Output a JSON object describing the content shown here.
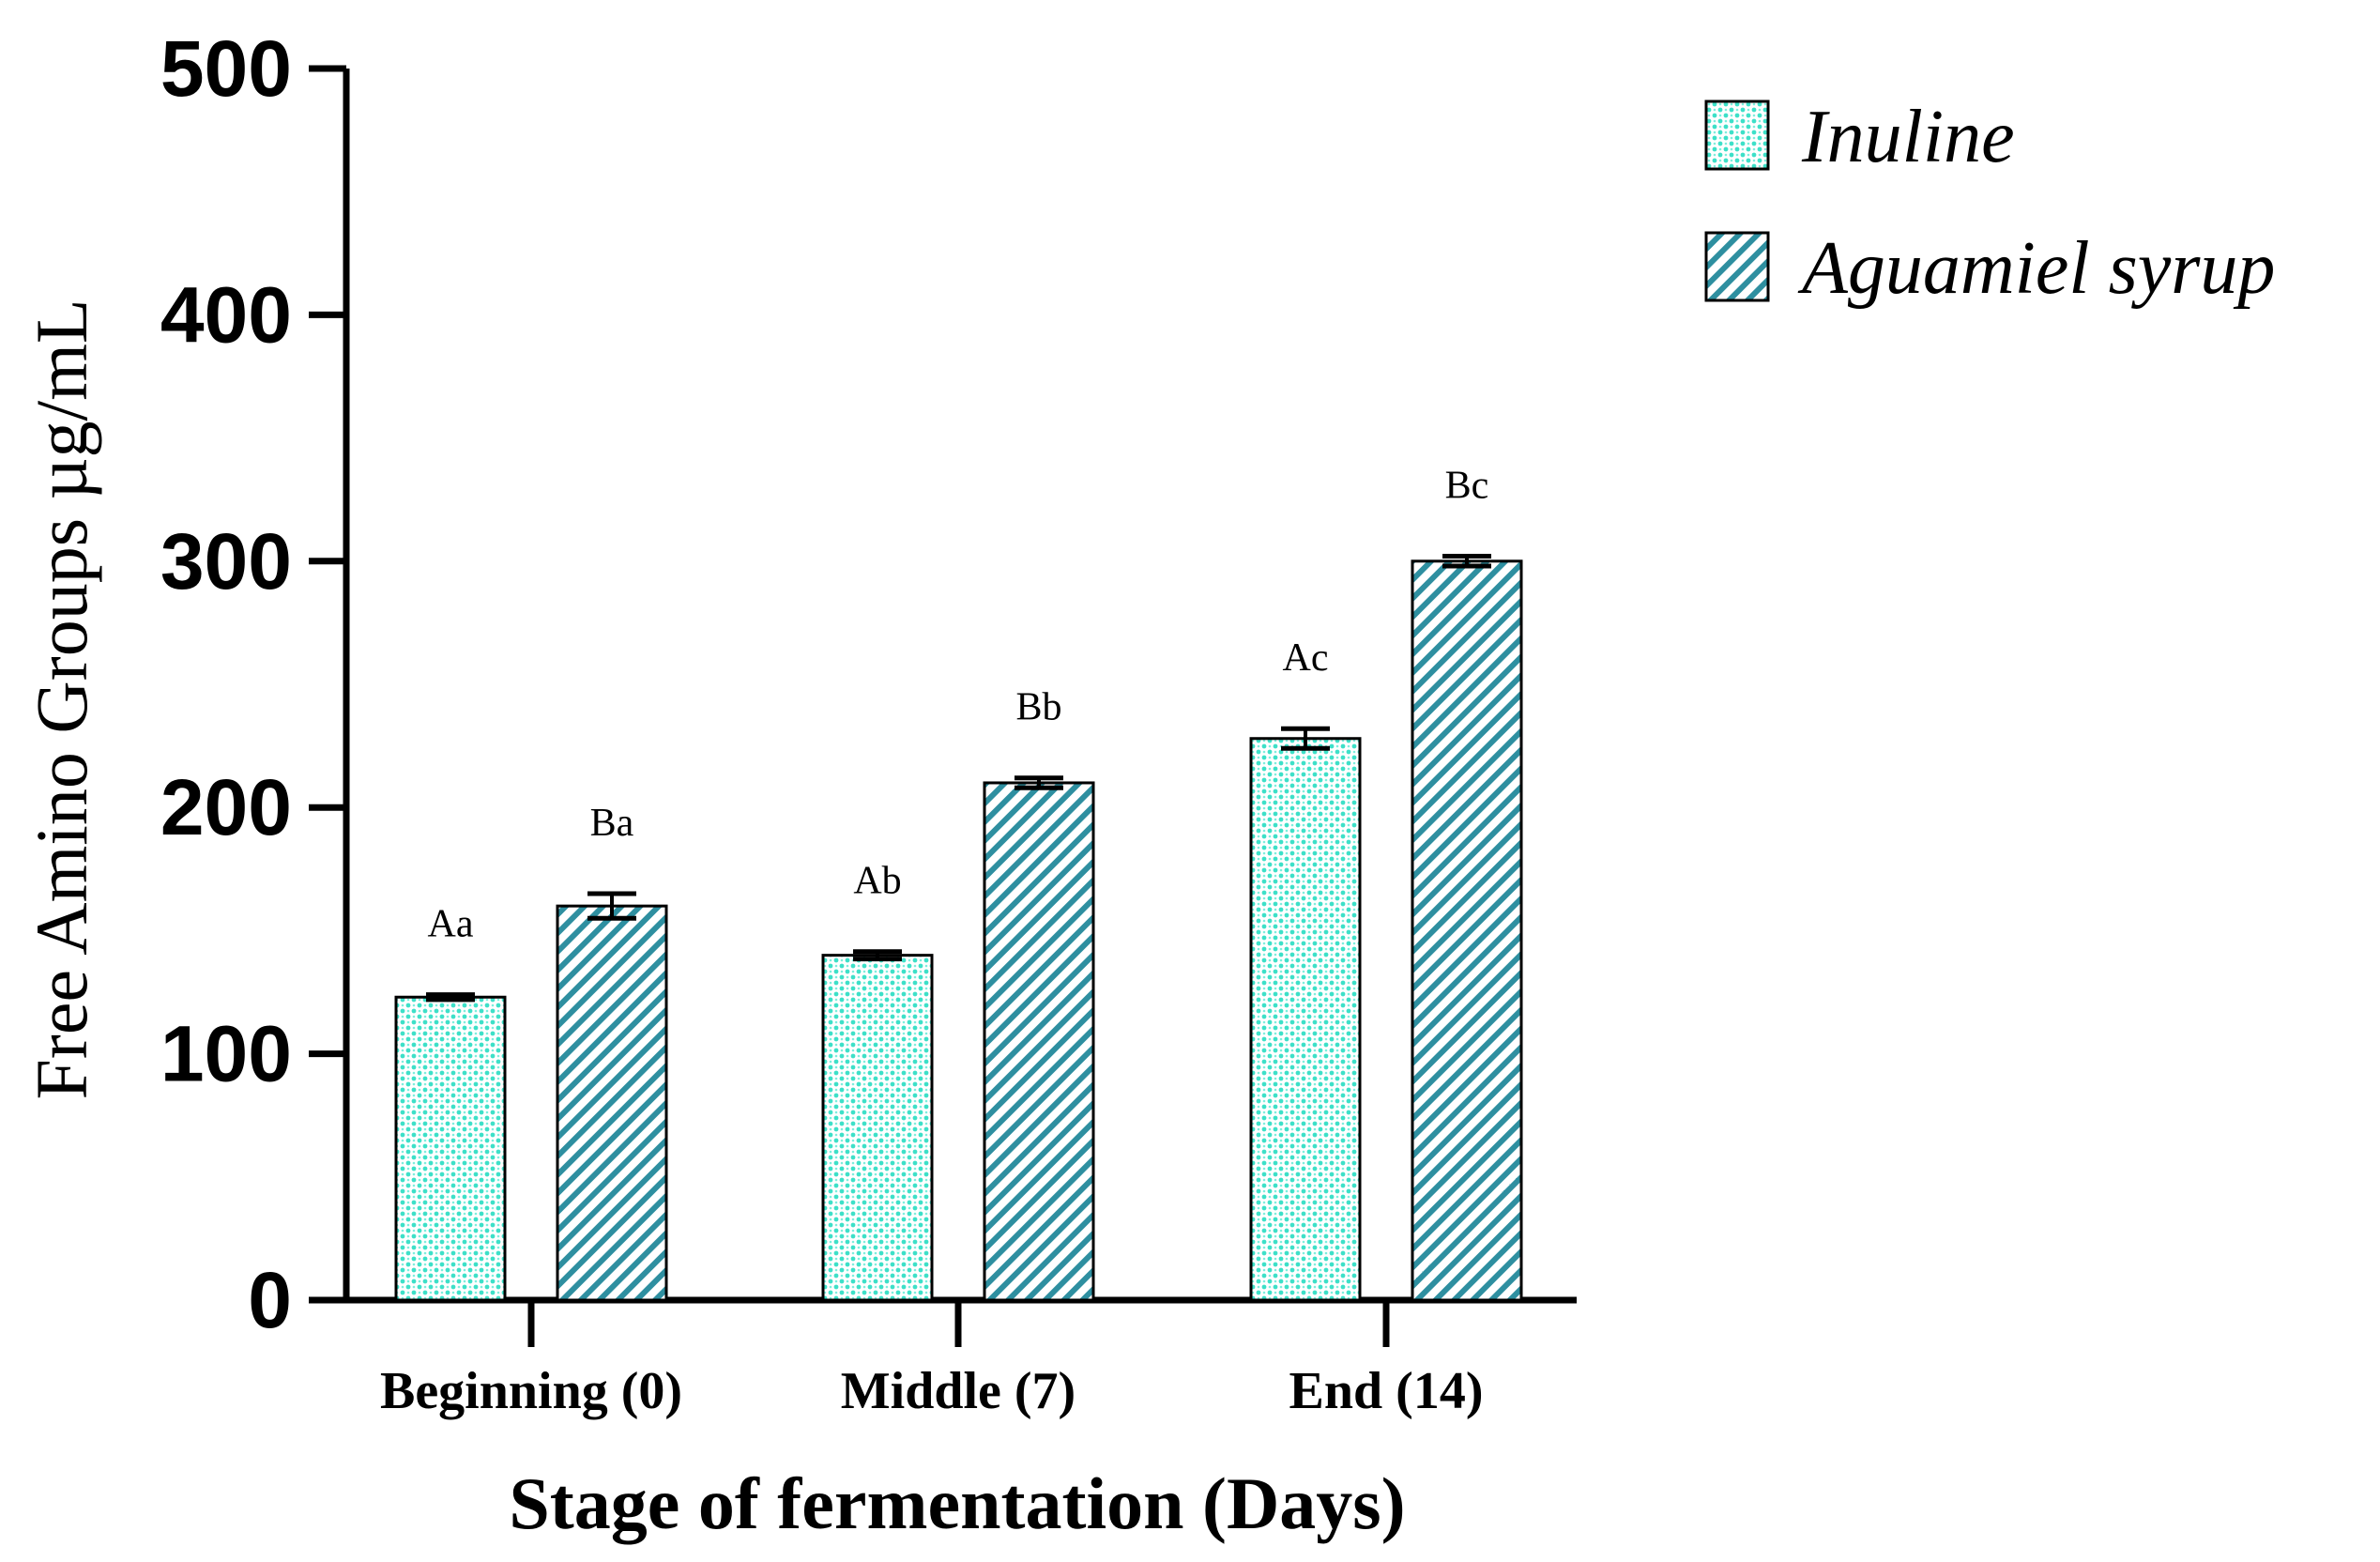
{
  "chart_data": {
    "type": "bar",
    "title": "",
    "xlabel": "Stage of fermentation (Days)",
    "ylabel": "Free Amino Groups µg/mL",
    "ylim": [
      0,
      500
    ],
    "yticks": [
      "0",
      "100",
      "200",
      "300",
      "400",
      "500"
    ],
    "categories": [
      "Beginning (0)",
      "Middle (7)",
      "End (14)"
    ],
    "series": [
      {
        "name": "Inuline",
        "values": [
          123,
          140,
          228
        ],
        "errors": [
          1,
          1.5,
          4
        ],
        "labels": [
          "Aa",
          "Ab",
          "Ac"
        ],
        "color": "#3de0c8",
        "pattern": "dots"
      },
      {
        "name": "Aguamiel syrup",
        "values": [
          160,
          210,
          300
        ],
        "errors": [
          5,
          2,
          2
        ],
        "labels": [
          "Ba",
          "Bb",
          "Bc"
        ],
        "color": "#2e8fa0",
        "pattern": "diagonal-hatch"
      }
    ],
    "legend_position": "top-right",
    "grid": false
  }
}
